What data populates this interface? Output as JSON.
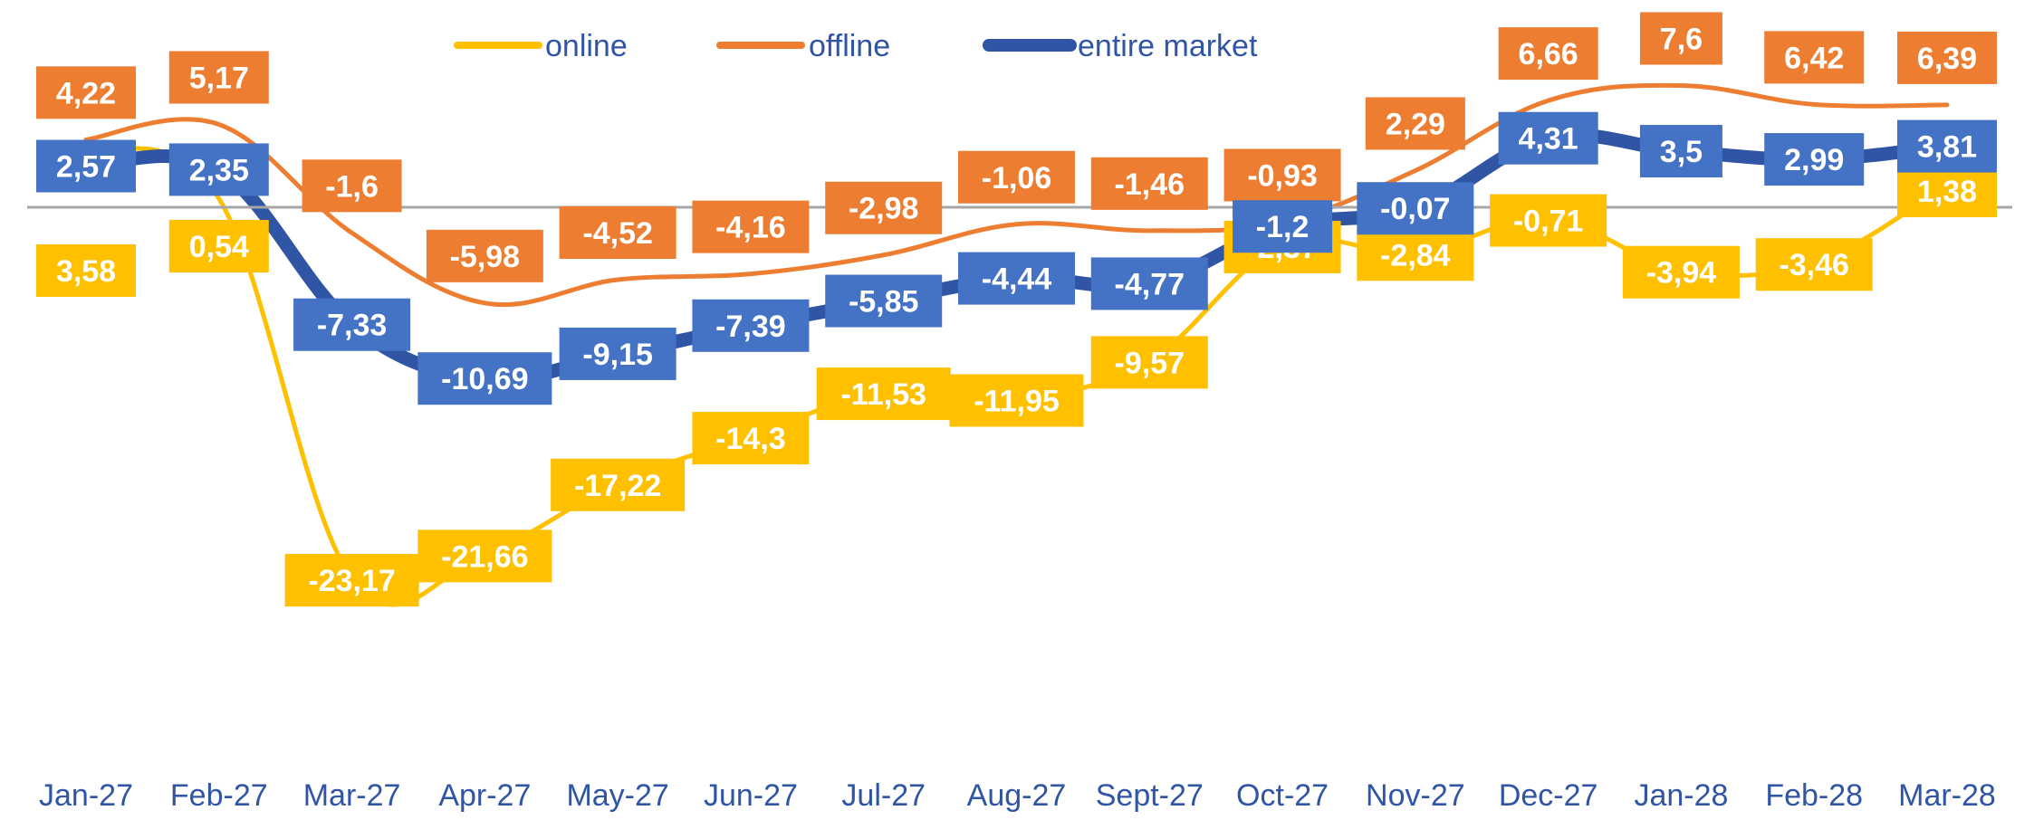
{
  "chart_data": {
    "type": "line",
    "categories": [
      "Jan-27",
      "Feb-27",
      "Mar-27",
      "Apr-27",
      "May-27",
      "Jun-27",
      "Jul-27",
      "Aug-27",
      "Sept-27",
      "Oct-27",
      "Nov-27",
      "Dec-27",
      "Jan-28",
      "Feb-28",
      "Mar-28"
    ],
    "series": [
      {
        "key": "online",
        "name": "online",
        "color": "#FFC000",
        "values": [
          3.58,
          0.54,
          -23.17,
          -21.66,
          -17.22,
          -14.3,
          -11.53,
          -11.95,
          -9.57,
          -2.37,
          -2.84,
          -0.71,
          -3.94,
          -3.46,
          1.38
        ],
        "labels": [
          "3,58",
          "0,54",
          "-23,17",
          "-21,66",
          "-17,22",
          "-14,3",
          "-11,53",
          "-11,95",
          "-9,57",
          "-2,37",
          "-2,84",
          "-0,71",
          "-3,94",
          "-3,46",
          "1,38"
        ]
      },
      {
        "key": "offline",
        "name": "offline",
        "color": "#ED7D31",
        "values": [
          4.22,
          5.17,
          -1.6,
          -5.98,
          -4.52,
          -4.16,
          -2.98,
          -1.06,
          -1.46,
          -0.93,
          2.29,
          6.66,
          7.6,
          6.42,
          6.39
        ],
        "labels": [
          "4,22",
          "5,17",
          "-1,6",
          "-5,98",
          "-4,52",
          "-4,16",
          "-2,98",
          "-1,06",
          "-1,46",
          "-0,93",
          "2,29",
          "6,66",
          "7,6",
          "6,42",
          "6,39"
        ]
      },
      {
        "key": "entire",
        "name": "entire market",
        "color": "#2F55A4",
        "values": [
          2.57,
          2.35,
          -7.33,
          -10.69,
          -9.15,
          -7.39,
          -5.85,
          -4.44,
          -4.77,
          -1.2,
          -0.07,
          4.31,
          3.5,
          2.99,
          3.81
        ],
        "labels": [
          "2,57",
          "2,35",
          "-7,33",
          "-10,69",
          "-9,15",
          "-7,39",
          "-5,85",
          "-4,44",
          "-4,77",
          "-1,2",
          "-0,07",
          "4,31",
          "3,5",
          "2,99",
          "3,81"
        ]
      }
    ],
    "title": "",
    "xlabel": "",
    "ylabel": "",
    "legend_position": "top-center",
    "grid": false,
    "label_box_colors": {
      "online": "#FFC000",
      "offline": "#ED7D31",
      "entire": "#4472C4"
    }
  }
}
